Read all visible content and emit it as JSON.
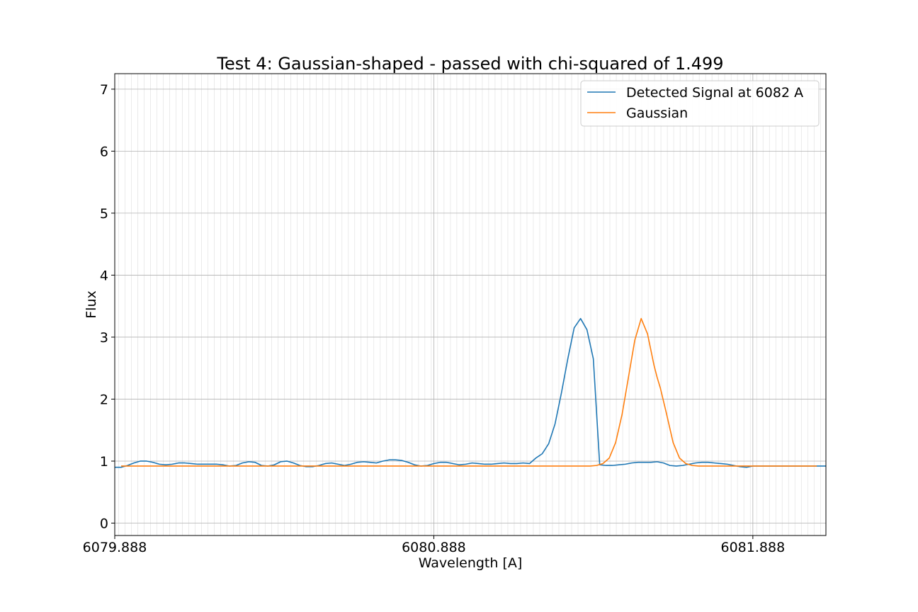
{
  "chart_data": {
    "type": "line",
    "title": "Test 4: Gaussian-shaped - passed with chi-squared of 1.499",
    "xlabel": "Wavelength [A]",
    "ylabel": "Flux",
    "xlim": [
      6079.888,
      6082.117
    ],
    "ylim": [
      -0.2,
      7.25
    ],
    "x_ticks": [
      6079.888,
      6080.888,
      6081.888
    ],
    "x_tick_labels": [
      "6079.888",
      "6080.888",
      "6081.888"
    ],
    "y_ticks": [
      0,
      1,
      2,
      3,
      4,
      5,
      6,
      7
    ],
    "y_tick_labels": [
      "0",
      "1",
      "2",
      "3",
      "4",
      "5",
      "6",
      "7"
    ],
    "minor_x_step": 0.02,
    "grid": true,
    "legend_position": "top-right",
    "series": [
      {
        "name": "Detected Signal at 6082 A",
        "color": "#1f77b4",
        "x": [
          6079.888,
          6079.908,
          6079.928,
          6079.948,
          6079.968,
          6079.988,
          6080.008,
          6080.028,
          6080.048,
          6080.068,
          6080.088,
          6080.108,
          6080.128,
          6080.148,
          6080.168,
          6080.188,
          6080.208,
          6080.228,
          6080.248,
          6080.268,
          6080.288,
          6080.308,
          6080.328,
          6080.348,
          6080.368,
          6080.388,
          6080.408,
          6080.428,
          6080.448,
          6080.468,
          6080.488,
          6080.508,
          6080.528,
          6080.548,
          6080.568,
          6080.588,
          6080.608,
          6080.628,
          6080.648,
          6080.668,
          6080.688,
          6080.708,
          6080.728,
          6080.748,
          6080.768,
          6080.788,
          6080.808,
          6080.828,
          6080.848,
          6080.868,
          6080.888,
          6080.908,
          6080.928,
          6080.948,
          6080.968,
          6080.988,
          6081.008,
          6081.028,
          6081.048,
          6081.068,
          6081.088,
          6081.108,
          6081.128,
          6081.148,
          6081.168,
          6081.188,
          6081.208,
          6081.228,
          6081.248,
          6081.268,
          6081.288,
          6081.308,
          6081.328,
          6081.348,
          6081.368,
          6081.388,
          6081.408,
          6081.428,
          6081.448,
          6081.468,
          6081.488,
          6081.508,
          6081.528,
          6081.548,
          6081.568,
          6081.588,
          6081.608,
          6081.628,
          6081.648,
          6081.668,
          6081.688,
          6081.708,
          6081.728,
          6081.748,
          6081.768,
          6081.788,
          6081.808,
          6081.828,
          6081.848,
          6081.868,
          6081.888,
          6081.908,
          6081.928,
          6081.948,
          6081.968,
          6081.988,
          6082.008,
          6082.028,
          6082.048,
          6082.068,
          6082.088,
          6082.108,
          6082.117
        ],
        "y": [
          0.9,
          0.9,
          0.93,
          0.97,
          1.0,
          1.0,
          0.98,
          0.95,
          0.94,
          0.95,
          0.97,
          0.97,
          0.96,
          0.95,
          0.95,
          0.95,
          0.95,
          0.94,
          0.92,
          0.93,
          0.97,
          0.99,
          0.98,
          0.93,
          0.92,
          0.94,
          0.99,
          1.0,
          0.97,
          0.93,
          0.91,
          0.91,
          0.93,
          0.96,
          0.97,
          0.95,
          0.93,
          0.95,
          0.98,
          0.99,
          0.98,
          0.97,
          1.0,
          1.02,
          1.02,
          1.01,
          0.98,
          0.94,
          0.92,
          0.93,
          0.96,
          0.98,
          0.98,
          0.96,
          0.94,
          0.95,
          0.97,
          0.96,
          0.95,
          0.95,
          0.96,
          0.97,
          0.96,
          0.96,
          0.97,
          0.96,
          1.05,
          1.12,
          1.28,
          1.6,
          2.1,
          2.65,
          3.15,
          3.3,
          3.12,
          2.65,
          0.94,
          0.93,
          0.93,
          0.94,
          0.95,
          0.97,
          0.98,
          0.98,
          0.98,
          0.99,
          0.97,
          0.93,
          0.92,
          0.93,
          0.95,
          0.97,
          0.98,
          0.98,
          0.97,
          0.96,
          0.95,
          0.93,
          0.91,
          0.9,
          0.92,
          0.92,
          0.92,
          0.92,
          0.92,
          0.92,
          0.92,
          0.92,
          0.92,
          0.92,
          0.92,
          0.92,
          0.92
        ]
      },
      {
        "name": "Gaussian",
        "color": "#ff7f0e",
        "x": [
          6079.908,
          6079.988,
          6080.088,
          6080.188,
          6080.288,
          6080.388,
          6080.488,
          6080.588,
          6080.688,
          6080.788,
          6080.888,
          6080.988,
          6081.088,
          6081.188,
          6081.288,
          6081.378,
          6081.398,
          6081.418,
          6081.438,
          6081.458,
          6081.478,
          6081.498,
          6081.518,
          6081.538,
          6081.558,
          6081.578,
          6081.588,
          6081.598,
          6081.618,
          6081.638,
          6081.658,
          6081.678,
          6081.698,
          6081.718,
          6081.738,
          6081.758,
          6081.778,
          6081.798,
          6081.818,
          6081.888,
          6081.988,
          6082.088
        ],
        "y": [
          0.92,
          0.92,
          0.92,
          0.92,
          0.92,
          0.92,
          0.92,
          0.92,
          0.92,
          0.92,
          0.92,
          0.92,
          0.92,
          0.92,
          0.92,
          0.92,
          0.93,
          0.96,
          1.05,
          1.3,
          1.75,
          2.35,
          2.95,
          3.3,
          3.05,
          2.55,
          2.35,
          2.18,
          1.75,
          1.3,
          1.05,
          0.96,
          0.93,
          0.92,
          0.92,
          0.92,
          0.92,
          0.92,
          0.92,
          0.92,
          0.92,
          0.92
        ]
      }
    ]
  }
}
